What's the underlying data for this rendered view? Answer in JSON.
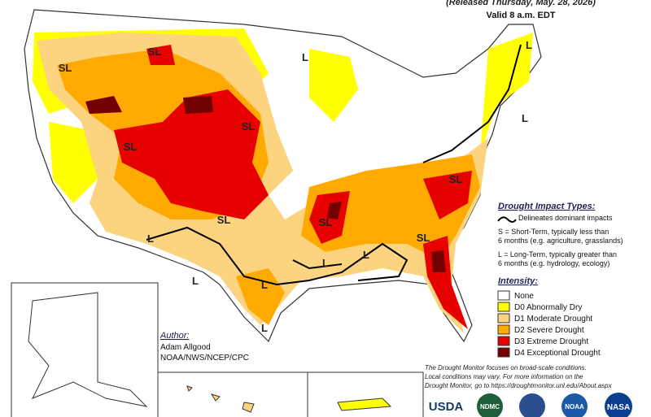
{
  "header": {
    "released": "(Released Thursday, May. 28, 2026)",
    "valid": "Valid 8 a.m. EDT"
  },
  "impact_legend": {
    "title": "Drought Impact Types:",
    "line": "Delineates dominant impacts",
    "short_term": [
      "S = Short-Term, typically less than",
      "6 months (e.g. agriculture, grasslands)"
    ],
    "long_term": [
      "L = Long-Term, typically greater than",
      "6 months (e.g. hydrology, ecology)"
    ]
  },
  "intensity": {
    "title": "Intensity:",
    "levels": [
      {
        "label": "None",
        "color": "#ffffff"
      },
      {
        "label": "D0 Abnormally Dry",
        "color": "#ffff00"
      },
      {
        "label": "D1 Moderate Drought",
        "color": "#fcd37f"
      },
      {
        "label": "D2 Severe Drought",
        "color": "#ffaa00"
      },
      {
        "label": "D3 Extreme Drought",
        "color": "#e60000"
      },
      {
        "label": "D4 Exceptional Drought",
        "color": "#730000"
      }
    ]
  },
  "author": {
    "title": "Author:",
    "name": "Adam Allgood",
    "org": "NOAA/NWS/NCEP/CPC"
  },
  "note": [
    "The Drought Monitor focuses on broad-scale conditions.",
    "Local conditions may vary. For more information on the",
    "Drought Monitor, go to https://droughtmonitor.unl.edu/About.aspx"
  ],
  "logos": [
    "USDA",
    "NDMC",
    "NOAA",
    "NASA"
  ],
  "map_labels": [
    "SL",
    "SL",
    "L",
    "L",
    "SL",
    "SL",
    "L",
    "SL",
    "SL",
    "SL",
    "SL",
    "L",
    "L",
    "L",
    "L",
    "L",
    "L"
  ]
}
